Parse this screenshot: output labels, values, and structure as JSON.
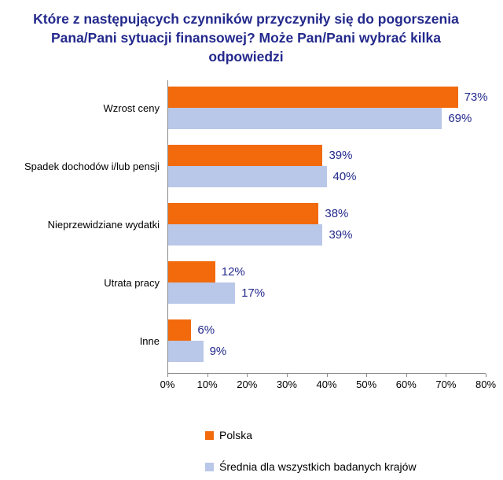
{
  "title": "Które z następujących czynników przyczyniły się do pogorszenia Pana/Pani sytuacji finansowej? Może Pan/Pani wybrać kilka odpowiedzi",
  "chart_data": {
    "type": "bar",
    "orientation": "horizontal",
    "categories": [
      "Wzrost ceny",
      "Spadek dochodów i/lub pensji",
      "Nieprzewidziane wydatki",
      "Utrata pracy",
      "Inne"
    ],
    "series": [
      {
        "name": "Polska",
        "color": "#F26A0C",
        "values": [
          73,
          39,
          38,
          12,
          6
        ]
      },
      {
        "name": "Średnia dla wszystkich badanych krajów",
        "color": "#B9C7E8",
        "values": [
          69,
          40,
          39,
          17,
          9
        ]
      }
    ],
    "xlim": [
      0,
      80
    ],
    "xtick_labels": [
      "0%",
      "10%",
      "20%",
      "30%",
      "40%",
      "50%",
      "60%",
      "70%",
      "80%"
    ],
    "value_suffix": "%",
    "grid": false,
    "legend_position": "bottom"
  },
  "colors": {
    "title": "#23298C",
    "value_label": "#23298C",
    "axis": "#8a8a8a",
    "category_label": "#000000",
    "background": "#FFFFFF"
  }
}
